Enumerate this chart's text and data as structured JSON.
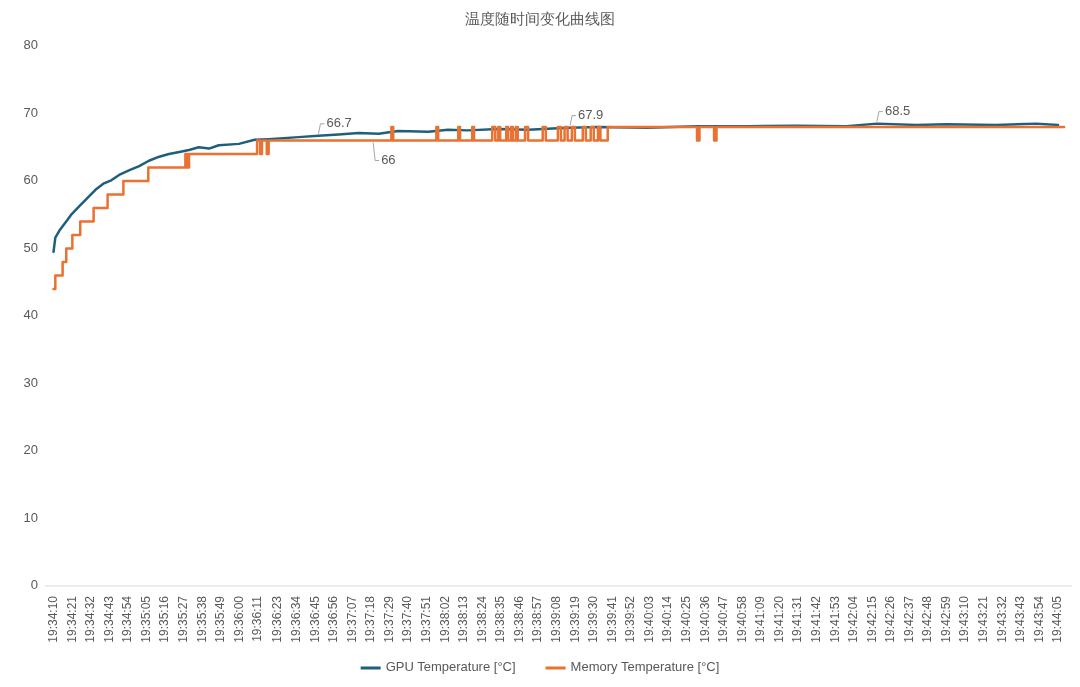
{
  "chart_data": {
    "type": "line",
    "title": "温度随时间变化曲线图",
    "xlim": [
      19.568,
      19.737
    ],
    "ylim": [
      0,
      80
    ],
    "yticks": [
      0,
      10,
      20,
      30,
      40,
      50,
      60,
      70,
      80
    ],
    "xticks": [
      {
        "value": 19.56944,
        "label": "19:34:10"
      },
      {
        "value": 19.5725,
        "label": "19:34:21"
      },
      {
        "value": 19.57556,
        "label": "19:34:32"
      },
      {
        "value": 19.57861,
        "label": "19:34:43"
      },
      {
        "value": 19.58167,
        "label": "19:34:54"
      },
      {
        "value": 19.58472,
        "label": "19:35:05"
      },
      {
        "value": 19.58778,
        "label": "19:35:16"
      },
      {
        "value": 19.59083,
        "label": "19:35:27"
      },
      {
        "value": 19.59389,
        "label": "19:35:38"
      },
      {
        "value": 19.59694,
        "label": "19:35:49"
      },
      {
        "value": 19.6,
        "label": "19:36:00"
      },
      {
        "value": 19.60306,
        "label": "19:36:11"
      },
      {
        "value": 19.60639,
        "label": "19:36:23"
      },
      {
        "value": 19.60944,
        "label": "19:36:34"
      },
      {
        "value": 19.6125,
        "label": "19:36:45"
      },
      {
        "value": 19.61556,
        "label": "19:36:56"
      },
      {
        "value": 19.61861,
        "label": "19:37:07"
      },
      {
        "value": 19.62167,
        "label": "19:37:18"
      },
      {
        "value": 19.62472,
        "label": "19:37:29"
      },
      {
        "value": 19.62778,
        "label": "19:37:40"
      },
      {
        "value": 19.63083,
        "label": "19:37:51"
      },
      {
        "value": 19.63389,
        "label": "19:38:02"
      },
      {
        "value": 19.63694,
        "label": "19:38:13"
      },
      {
        "value": 19.64,
        "label": "19:38:24"
      },
      {
        "value": 19.64306,
        "label": "19:38:35"
      },
      {
        "value": 19.64611,
        "label": "19:38:46"
      },
      {
        "value": 19.64917,
        "label": "19:38:57"
      },
      {
        "value": 19.65222,
        "label": "19:39:08"
      },
      {
        "value": 19.65528,
        "label": "19:39:19"
      },
      {
        "value": 19.65833,
        "label": "19:39:30"
      },
      {
        "value": 19.66139,
        "label": "19:39:41"
      },
      {
        "value": 19.66444,
        "label": "19:39:52"
      },
      {
        "value": 19.6675,
        "label": "19:40:03"
      },
      {
        "value": 19.67056,
        "label": "19:40:14"
      },
      {
        "value": 19.67361,
        "label": "19:40:25"
      },
      {
        "value": 19.67667,
        "label": "19:40:36"
      },
      {
        "value": 19.67972,
        "label": "19:40:47"
      },
      {
        "value": 19.68278,
        "label": "19:40:58"
      },
      {
        "value": 19.68583,
        "label": "19:41:09"
      },
      {
        "value": 19.68889,
        "label": "19:41:20"
      },
      {
        "value": 19.69194,
        "label": "19:41:31"
      },
      {
        "value": 19.695,
        "label": "19:41:42"
      },
      {
        "value": 19.69806,
        "label": "19:41:53"
      },
      {
        "value": 19.70111,
        "label": "19:42:04"
      },
      {
        "value": 19.70417,
        "label": "19:42:15"
      },
      {
        "value": 19.70722,
        "label": "19:42:26"
      },
      {
        "value": 19.71028,
        "label": "19:42:37"
      },
      {
        "value": 19.71333,
        "label": "19:42:48"
      },
      {
        "value": 19.71639,
        "label": "19:42:59"
      },
      {
        "value": 19.71944,
        "label": "19:43:10"
      },
      {
        "value": 19.7225,
        "label": "19:43:21"
      },
      {
        "value": 19.72556,
        "label": "19:43:32"
      },
      {
        "value": 19.72861,
        "label": "19:43:43"
      },
      {
        "value": 19.73167,
        "label": "19:43:54"
      },
      {
        "value": 19.73472,
        "label": "19:44:05"
      }
    ],
    "grid": false,
    "legend": "bottom",
    "marker": "none",
    "line_style": "solid",
    "series": [
      {
        "name": "GPU Temperature [°C]",
        "color": "#1f5f7e",
        "x": [
          19.5694,
          19.5697,
          19.5704,
          19.5714,
          19.5724,
          19.5737,
          19.575,
          19.5763,
          19.5776,
          19.5789,
          19.5802,
          19.5819,
          19.5835,
          19.5851,
          19.5868,
          19.5884,
          19.5901,
          19.5917,
          19.5933,
          19.595,
          19.5966,
          19.5999,
          19.6025,
          19.6048,
          19.6097,
          19.613,
          19.6163,
          19.6196,
          19.6229,
          19.6261,
          19.6311,
          19.6343,
          19.6376,
          19.6425,
          19.6475,
          19.6524,
          19.6544,
          19.659,
          19.6671,
          19.6753,
          19.6835,
          19.6917,
          19.6999,
          19.7049,
          19.7114,
          19.7163,
          19.7245,
          19.7311,
          19.7347
        ],
        "values": [
          49.5,
          51.6,
          52.7,
          53.9,
          55.1,
          56.3,
          57.5,
          58.7,
          59.6,
          60.1,
          60.9,
          61.6,
          62.2,
          63.0,
          63.6,
          64.0,
          64.3,
          64.6,
          65.0,
          64.8,
          65.3,
          65.5,
          66.1,
          66.2,
          66.5,
          66.7,
          66.9,
          67.1,
          67.0,
          67.4,
          67.3,
          67.6,
          67.5,
          67.7,
          67.6,
          67.8,
          67.9,
          68.0,
          67.9,
          68.1,
          68.1,
          68.2,
          68.1,
          68.5,
          68.3,
          68.4,
          68.3,
          68.5,
          68.3
        ]
      },
      {
        "name": "Memory Temperature [°C]",
        "color": "#e97132",
        "type": "step",
        "x": [
          19.5694,
          19.5697,
          19.5709,
          19.5715,
          19.5725,
          19.5738,
          19.576,
          19.5783,
          19.5809,
          19.585,
          19.5911,
          19.5914,
          19.5917,
          19.6029,
          19.6034,
          19.6037,
          19.6045,
          19.6048,
          19.625,
          19.6253,
          19.6324,
          19.6327,
          19.636,
          19.6363,
          19.6383,
          19.6386,
          19.6416,
          19.6421,
          19.6426,
          19.6429,
          19.6439,
          19.6442,
          19.6447,
          19.645,
          19.6455,
          19.6458,
          19.647,
          19.6475,
          19.6499,
          19.6504,
          19.6524,
          19.6529,
          19.6535,
          19.654,
          19.6547,
          19.6552,
          19.6565,
          19.657,
          19.6578,
          19.6583,
          19.659,
          19.6594,
          19.6606,
          19.6753,
          19.6757,
          19.6781,
          19.6785,
          19.7357
        ],
        "values": [
          44,
          46,
          48,
          50,
          52,
          54,
          56,
          58,
          60,
          62,
          64,
          62,
          64,
          66,
          64,
          66,
          64,
          66,
          68,
          66,
          68,
          66,
          68,
          66,
          68,
          66,
          68,
          66,
          68,
          66,
          68,
          66,
          68,
          66,
          68,
          66,
          68,
          66,
          68,
          66,
          68,
          66,
          68,
          66,
          68,
          66,
          68,
          66,
          68,
          66,
          68,
          66,
          68,
          66,
          68,
          66,
          68,
          68
        ]
      }
    ],
    "annotations": [
      {
        "text": "66.7",
        "x": 19.613,
        "y": 66.7
      },
      {
        "text": "66",
        "x": 19.622,
        "y": 66
      },
      {
        "text": "67.9",
        "x": 19.6544,
        "y": 67.9
      },
      {
        "text": "68.5",
        "x": 19.7049,
        "y": 68.5
      }
    ]
  }
}
